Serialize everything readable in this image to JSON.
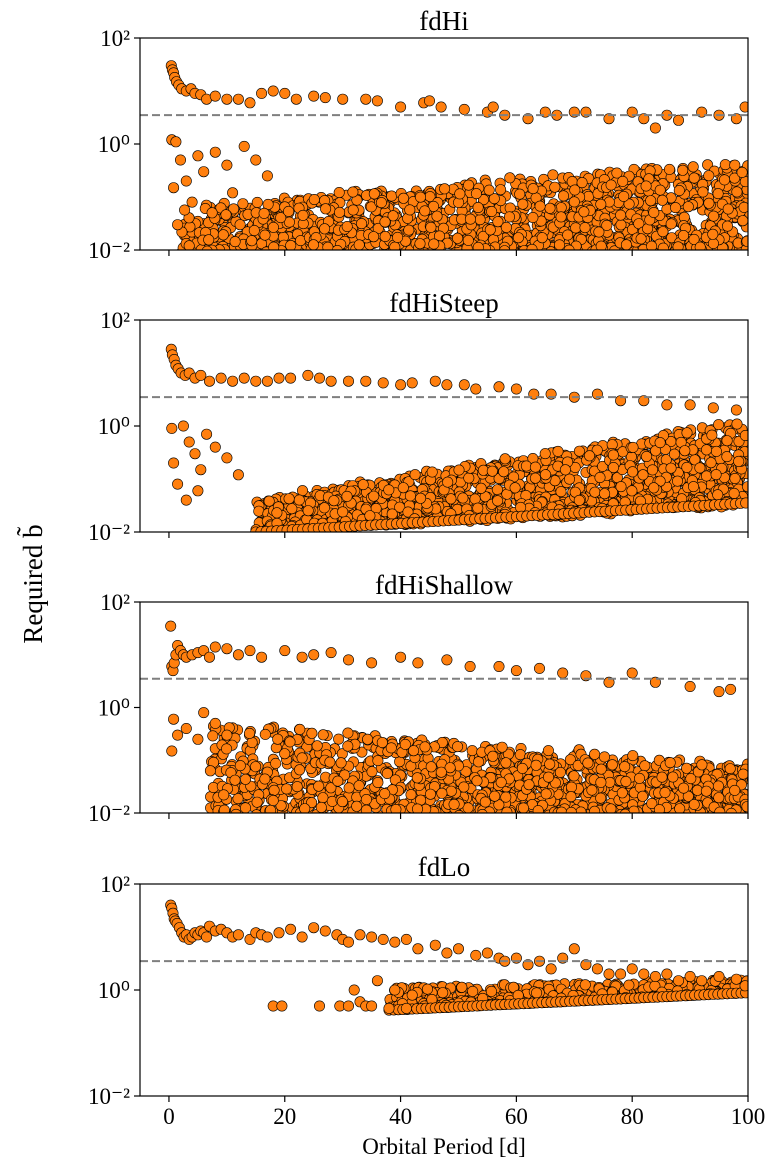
{
  "figure": {
    "ylabel": "Required b̃",
    "xlabel": "Orbital Period [d]",
    "marker_color": "#ff7f0e",
    "marker_edge": "#000000",
    "threshold_color": "#7f7f7f"
  },
  "chart_data": [
    {
      "type": "scatter",
      "title": "fdHi",
      "xlim": [
        -5,
        100
      ],
      "ylim": [
        0.01,
        100
      ],
      "yscale": "log",
      "x_ticks": [
        0,
        20,
        40,
        60,
        80,
        100
      ],
      "x_tick_labels": [
        "",
        "",
        "",
        "",
        "",
        ""
      ],
      "y_ticks": [
        0.01,
        1,
        100
      ],
      "y_tick_labels": [
        "10⁻²",
        "10⁰",
        "10²"
      ],
      "threshold_y": 3.5,
      "series": [
        {
          "points": [
            [
              0.4,
              30
            ],
            [
              0.6,
              25
            ],
            [
              0.8,
              22
            ],
            [
              1.0,
              18
            ],
            [
              1.3,
              15
            ],
            [
              1.7,
              13
            ],
            [
              2.2,
              11
            ],
            [
              3.0,
              10
            ],
            [
              3.8,
              11
            ],
            [
              4.5,
              9
            ],
            [
              5.5,
              8.5
            ],
            [
              6.5,
              7
            ],
            [
              8,
              8
            ],
            [
              10,
              7
            ],
            [
              12,
              7
            ],
            [
              14,
              6
            ],
            [
              16,
              9
            ],
            [
              18,
              10
            ],
            [
              20,
              9
            ],
            [
              22,
              7
            ],
            [
              25,
              8
            ],
            [
              27,
              7.5
            ],
            [
              30,
              7
            ],
            [
              34,
              7
            ],
            [
              36,
              6.5
            ],
            [
              40,
              5
            ],
            [
              44,
              6
            ],
            [
              45,
              6.5
            ],
            [
              47,
              5
            ],
            [
              51,
              4.5
            ],
            [
              55,
              4
            ],
            [
              56,
              5
            ],
            [
              58,
              3.5
            ],
            [
              62,
              3
            ],
            [
              65,
              4
            ],
            [
              67,
              3.5
            ],
            [
              70,
              4
            ],
            [
              72,
              4
            ],
            [
              76,
              3
            ],
            [
              80,
              4
            ],
            [
              82,
              3
            ],
            [
              84,
              2
            ],
            [
              86,
              3.5
            ],
            [
              88,
              2.8
            ],
            [
              92,
              4
            ],
            [
              95,
              3.5
            ],
            [
              98,
              3
            ],
            [
              99.5,
              5
            ],
            [
              0.5,
              1.2
            ],
            [
              0.8,
              0.15
            ],
            [
              1.2,
              1.1
            ],
            [
              2,
              0.5
            ],
            [
              3,
              0.2
            ],
            [
              4,
              0.08
            ],
            [
              5,
              0.6
            ],
            [
              6,
              0.3
            ],
            [
              8,
              0.7
            ],
            [
              10,
              0.4
            ],
            [
              11,
              0.12
            ],
            [
              13,
              0.9
            ],
            [
              15,
              0.5
            ],
            [
              17,
              0.25
            ],
            [
              1.5,
              0.03
            ],
            [
              3.5,
              0.012
            ]
          ],
          "cloud": {
            "x_min": 2,
            "x_max": 100,
            "y_min_log": -2,
            "y_top_log_start": -1.2,
            "y_top_log_end": -0.3,
            "n": 1600
          }
        }
      ]
    },
    {
      "type": "scatter",
      "title": "fdHiSteep",
      "xlim": [
        -5,
        100
      ],
      "ylim": [
        0.01,
        100
      ],
      "yscale": "log",
      "x_ticks": [
        0,
        20,
        40,
        60,
        80,
        100
      ],
      "x_tick_labels": [
        "",
        "",
        "",
        "",
        "",
        ""
      ],
      "y_ticks": [
        0.01,
        1,
        100
      ],
      "y_tick_labels": [
        "10⁻²",
        "10⁰",
        "10²"
      ],
      "threshold_y": 3.5,
      "series": [
        {
          "points": [
            [
              0.4,
              28
            ],
            [
              0.6,
              22
            ],
            [
              0.9,
              18
            ],
            [
              1.2,
              14
            ],
            [
              1.6,
              12
            ],
            [
              2.1,
              10
            ],
            [
              2.8,
              9
            ],
            [
              3.5,
              10
            ],
            [
              4.5,
              8
            ],
            [
              5.5,
              9
            ],
            [
              7,
              7
            ],
            [
              9,
              8
            ],
            [
              11,
              7
            ],
            [
              13,
              8
            ],
            [
              15,
              7
            ],
            [
              17,
              7
            ],
            [
              19,
              8
            ],
            [
              21,
              8
            ],
            [
              24,
              9
            ],
            [
              26,
              8
            ],
            [
              28,
              7
            ],
            [
              31,
              7
            ],
            [
              34,
              7
            ],
            [
              37,
              6.5
            ],
            [
              40,
              6
            ],
            [
              42,
              6.5
            ],
            [
              46,
              7
            ],
            [
              48,
              6
            ],
            [
              51,
              6
            ],
            [
              53,
              5
            ],
            [
              57,
              5.5
            ],
            [
              60,
              5
            ],
            [
              63,
              4
            ],
            [
              66,
              4
            ],
            [
              70,
              3.5
            ],
            [
              74,
              4
            ],
            [
              78,
              3
            ],
            [
              82,
              3
            ],
            [
              86,
              2.5
            ],
            [
              90,
              2.5
            ],
            [
              94,
              2.2
            ],
            [
              98,
              2
            ],
            [
              0.5,
              0.9
            ],
            [
              0.8,
              0.2
            ],
            [
              1.5,
              0.08
            ],
            [
              2.5,
              1.0
            ],
            [
              3.5,
              0.5
            ],
            [
              4.5,
              0.3
            ],
            [
              5.5,
              0.15
            ],
            [
              6.5,
              0.7
            ],
            [
              8,
              0.4
            ],
            [
              10,
              0.25
            ],
            [
              12,
              0.12
            ],
            [
              3,
              0.04
            ],
            [
              5,
              0.06
            ]
          ],
          "cloud": {
            "x_min": 15,
            "x_max": 100,
            "y_min_log": -2,
            "y_top_log_start": -1.4,
            "y_top_log_end": 0.1,
            "floor_log_start": -2,
            "floor_log_end": -1.45,
            "n": 1500
          }
        }
      ]
    },
    {
      "type": "scatter",
      "title": "fdHiShallow",
      "xlim": [
        -5,
        100
      ],
      "ylim": [
        0.01,
        100
      ],
      "yscale": "log",
      "x_ticks": [
        0,
        20,
        40,
        60,
        80,
        100
      ],
      "x_tick_labels": [
        "",
        "",
        "",
        "",
        "",
        ""
      ],
      "y_ticks": [
        0.01,
        1,
        100
      ],
      "y_tick_labels": [
        "10⁻²",
        "10⁰",
        "10²"
      ],
      "threshold_y": 3.5,
      "series": [
        {
          "points": [
            [
              0.3,
              35
            ],
            [
              0.5,
              6
            ],
            [
              0.7,
              5
            ],
            [
              0.9,
              7
            ],
            [
              1.2,
              10
            ],
            [
              1.5,
              15
            ],
            [
              2,
              12
            ],
            [
              2.5,
              10
            ],
            [
              3,
              9
            ],
            [
              4,
              10
            ],
            [
              5,
              11
            ],
            [
              6,
              12
            ],
            [
              7,
              9
            ],
            [
              8,
              14
            ],
            [
              10,
              13
            ],
            [
              12,
              10
            ],
            [
              14,
              12
            ],
            [
              16,
              9
            ],
            [
              20,
              12
            ],
            [
              23,
              9
            ],
            [
              25,
              10
            ],
            [
              28,
              11
            ],
            [
              31,
              8
            ],
            [
              35,
              7
            ],
            [
              40,
              9
            ],
            [
              43,
              7
            ],
            [
              48,
              8
            ],
            [
              52,
              6
            ],
            [
              57,
              6
            ],
            [
              60,
              5
            ],
            [
              64,
              5.5
            ],
            [
              68,
              4.5
            ],
            [
              72,
              4
            ],
            [
              76,
              3
            ],
            [
              80,
              4.5
            ],
            [
              84,
              3
            ],
            [
              90,
              2.5
            ],
            [
              95,
              2
            ],
            [
              97,
              2.2
            ],
            [
              0.5,
              0.15
            ],
            [
              0.8,
              0.6
            ],
            [
              1.5,
              0.3
            ],
            [
              3,
              0.4
            ],
            [
              5,
              0.25
            ],
            [
              6,
              0.8
            ],
            [
              8,
              0.5
            ],
            [
              10,
              0.3
            ]
          ],
          "cloud": {
            "x_min": 7,
            "x_max": 100,
            "y_min_log": -2,
            "y_top_log_start": -0.3,
            "y_top_log_end": -1.1,
            "n": 1400
          }
        }
      ]
    },
    {
      "type": "scatter",
      "title": "fdLo",
      "xlim": [
        -5,
        100
      ],
      "ylim": [
        0.01,
        100
      ],
      "yscale": "log",
      "x_ticks": [
        0,
        20,
        40,
        60,
        80,
        100
      ],
      "x_tick_labels": [
        "0",
        "20",
        "40",
        "60",
        "80",
        "100"
      ],
      "y_ticks": [
        0.01,
        1,
        100
      ],
      "y_tick_labels": [
        "10⁻²",
        "10⁰",
        "10²"
      ],
      "threshold_y": 3.5,
      "series": [
        {
          "points": [
            [
              0.3,
              40
            ],
            [
              0.5,
              35
            ],
            [
              0.7,
              28
            ],
            [
              0.9,
              22
            ],
            [
              1.1,
              20
            ],
            [
              1.4,
              18
            ],
            [
              1.8,
              15
            ],
            [
              2.2,
              12
            ],
            [
              2.6,
              10
            ],
            [
              3,
              11
            ],
            [
              3.5,
              9
            ],
            [
              4,
              10
            ],
            [
              4.5,
              12
            ],
            [
              5,
              11
            ],
            [
              5.5,
              13
            ],
            [
              6,
              12
            ],
            [
              6.5,
              10
            ],
            [
              7,
              16
            ],
            [
              8,
              13
            ],
            [
              9,
              14
            ],
            [
              10,
              12
            ],
            [
              11,
              10
            ],
            [
              12,
              11
            ],
            [
              14,
              9
            ],
            [
              15,
              12
            ],
            [
              16,
              11
            ],
            [
              17,
              10
            ],
            [
              19,
              12
            ],
            [
              21,
              14
            ],
            [
              23,
              10
            ],
            [
              25,
              15
            ],
            [
              27,
              13
            ],
            [
              29,
              11
            ],
            [
              30,
              9
            ],
            [
              31,
              8
            ],
            [
              33,
              11
            ],
            [
              35,
              10
            ],
            [
              37,
              9
            ],
            [
              39,
              8
            ],
            [
              41,
              9
            ],
            [
              43,
              6
            ],
            [
              46,
              7
            ],
            [
              48,
              5
            ],
            [
              50,
              6
            ],
            [
              53,
              4.5
            ],
            [
              55,
              5
            ],
            [
              57,
              4
            ],
            [
              58,
              3.5
            ],
            [
              60,
              4
            ],
            [
              62,
              3
            ],
            [
              64,
              3.5
            ],
            [
              66,
              2.5
            ],
            [
              68,
              4
            ],
            [
              70,
              6
            ],
            [
              72,
              3
            ],
            [
              74,
              2.5
            ],
            [
              76,
              2
            ],
            [
              78,
              2
            ],
            [
              80,
              2.5
            ],
            [
              82,
              2
            ],
            [
              84,
              1.8
            ],
            [
              86,
              2
            ],
            [
              88,
              1.5
            ],
            [
              90,
              1.8
            ],
            [
              92,
              1.5
            ],
            [
              95,
              1.8
            ],
            [
              98,
              1.6
            ],
            [
              99.5,
              1.2
            ],
            [
              18,
              0.5
            ],
            [
              19.5,
              0.5
            ],
            [
              26,
              0.5
            ],
            [
              29.5,
              0.5
            ],
            [
              31,
              0.5
            ],
            [
              32,
              1.0
            ],
            [
              33,
              0.6
            ],
            [
              34,
              0.5
            ],
            [
              35,
              0.5
            ],
            [
              36,
              1.5
            ],
            [
              38,
              0.45
            ],
            [
              39,
              1.0
            ],
            [
              41,
              0.45
            ],
            [
              42,
              0.8
            ]
          ],
          "band": {
            "x_min": 38,
            "x_max": 100,
            "floor_log_start": -0.38,
            "floor_log_end": -0.05,
            "top_log_start": 0.05,
            "top_log_end": 0.2,
            "n": 650
          }
        }
      ]
    }
  ]
}
